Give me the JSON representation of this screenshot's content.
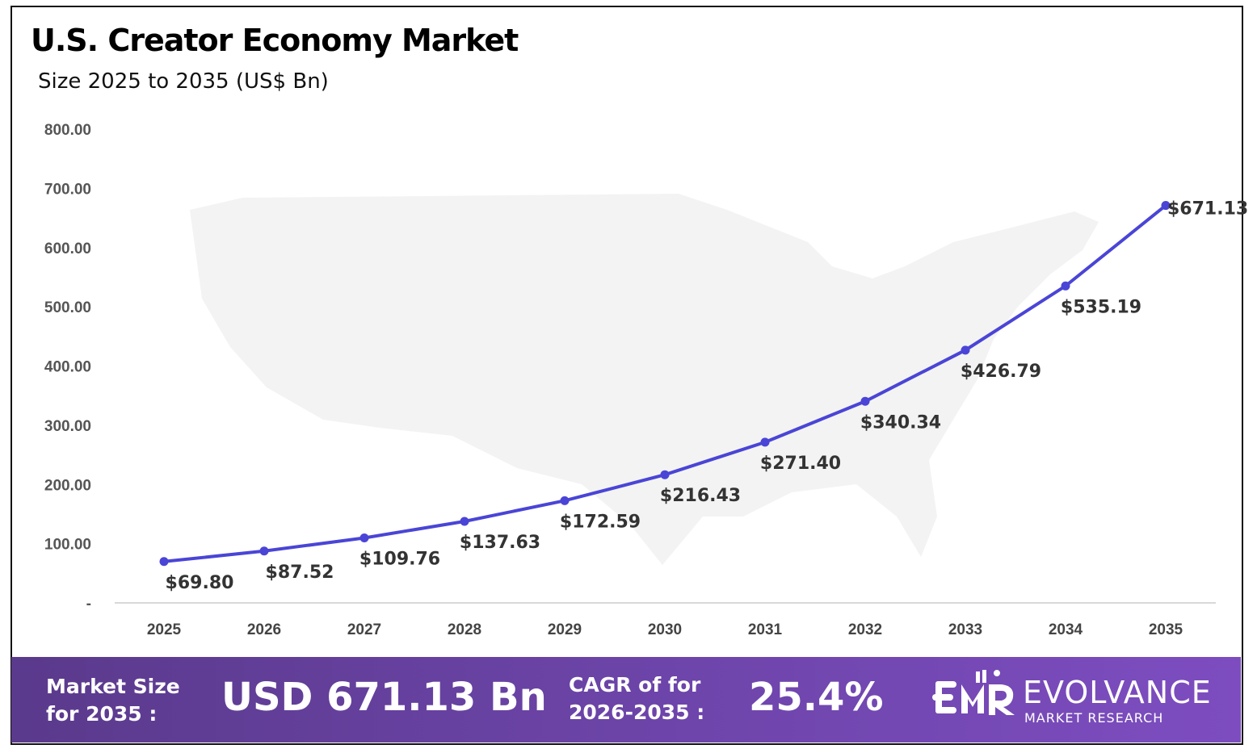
{
  "header": {
    "title": "U.S. Creator Economy Market",
    "subtitle": "Size 2025 to 2035 (US$ Bn)"
  },
  "chart_data": {
    "type": "line",
    "categories": [
      "2025",
      "2026",
      "2027",
      "2028",
      "2029",
      "2030",
      "2031",
      "2032",
      "2033",
      "2034",
      "2035"
    ],
    "values": [
      69.8,
      87.52,
      109.76,
      137.63,
      172.59,
      216.43,
      271.4,
      340.34,
      426.79,
      535.19,
      671.13
    ],
    "data_labels": [
      "$69.80",
      "$87.52",
      "$109.76",
      "$137.63",
      "$172.59",
      "$216.43",
      "$271.40",
      "$340.34",
      "$426.79",
      "$535.19",
      "$671.13"
    ],
    "y_ticks": [
      "-",
      "100.00",
      "200.00",
      "300.00",
      "400.00",
      "500.00",
      "600.00",
      "700.00",
      "800.00"
    ],
    "ylim": [
      0,
      800
    ],
    "grid": false,
    "line_color": "#4a45d6",
    "background": "US map silhouette (light gray)"
  },
  "footer": {
    "market_size_label_1": "Market Size",
    "market_size_label_2": "for 2035 :",
    "market_size_value": "USD 671.13 Bn",
    "cagr_label_1": "CAGR of for",
    "cagr_label_2": "2026-2035 :",
    "cagr_value": "25.4%",
    "logo_mark": "EMR",
    "logo_name": "EVOLVANCE",
    "logo_sub": "MARKET RESEARCH"
  }
}
